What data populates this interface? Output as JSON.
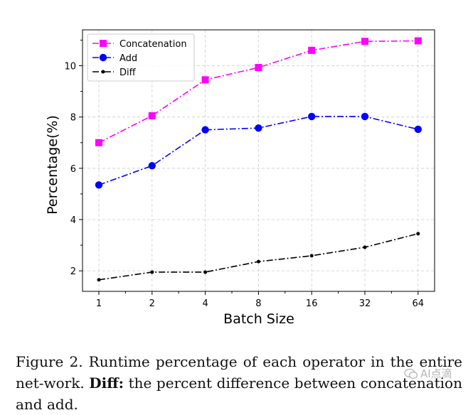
{
  "chart_data": {
    "type": "line",
    "title": "",
    "xlabel": "Batch Size",
    "ylabel": "Percentage(%)",
    "categories": [
      "1",
      "2",
      "4",
      "8",
      "16",
      "32",
      "64"
    ],
    "yticks": [
      2,
      4,
      6,
      8,
      10
    ],
    "ylim": [
      1.2,
      11.4
    ],
    "grid": true,
    "legend": "top-left",
    "series": [
      {
        "name": "Concatenation",
        "color": "#ff00ff",
        "marker": "square",
        "linestyle": "dash-dot",
        "values": [
          7.0,
          8.05,
          9.45,
          9.93,
          10.6,
          10.95,
          10.97
        ]
      },
      {
        "name": "Add",
        "color": "#0000ff",
        "marker": "circle",
        "linestyle": "dash-dot",
        "values": [
          5.35,
          6.1,
          7.5,
          7.57,
          8.02,
          8.02,
          7.52
        ]
      },
      {
        "name": "Diff",
        "color": "#000000",
        "marker": "point",
        "linestyle": "dash-dot",
        "values": [
          1.65,
          1.95,
          1.95,
          2.36,
          2.59,
          2.92,
          3.45
        ]
      }
    ]
  },
  "caption": {
    "prefix": "Figure 2.  Runtime percentage of each operator in the entire net-work. ",
    "bold": "Diff:",
    "rest": " the percent difference between concatenation and add."
  },
  "watermark": {
    "text": "AI点滴"
  }
}
